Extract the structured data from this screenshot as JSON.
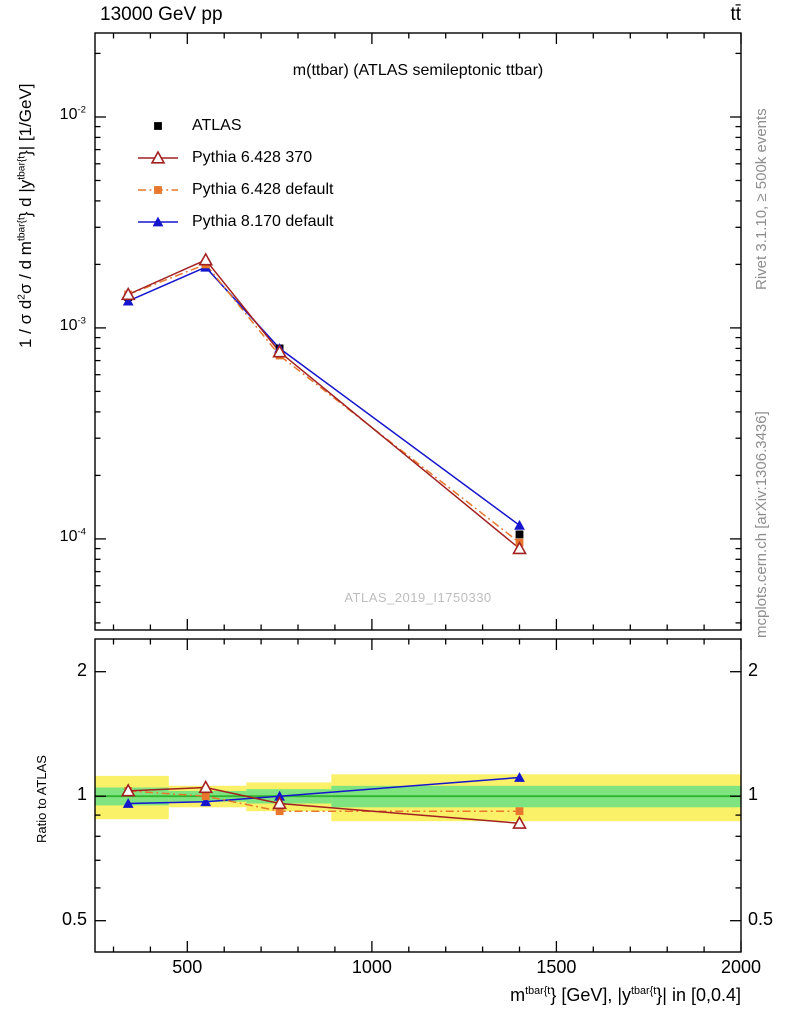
{
  "header": {
    "left": "13000 GeV pp",
    "right": "tt̄"
  },
  "plot": {
    "title": "m(ttbar) (ATLAS semileptonic ttbar)",
    "watermark": "ATLAS_2019_I1750330"
  },
  "side": {
    "rivet": "Rivet 3.1.10, ≥ 500k events",
    "mcplots": "mcplots.cern.ch [arXiv:1306.3436]"
  },
  "axes": {
    "ratio_ylabel": "Ratio to ATLAS",
    "main_ylabel_segments": [
      {
        "t": "1 / σ d"
      },
      {
        "t": "2",
        "sup": true
      },
      {
        "t": "σ / d m"
      },
      {
        "t": "tbar{t",
        "sup": true
      },
      {
        "t": "} d |y"
      },
      {
        "t": "tbar{t",
        "sup": true
      },
      {
        "t": "}| [1/GeV]"
      }
    ],
    "xlabel_segments": [
      {
        "t": "m"
      },
      {
        "t": "tbar{t",
        "sup": true
      },
      {
        "t": "} [GeV], |y"
      },
      {
        "t": "tbar{t",
        "sup": true
      },
      {
        "t": "}| in [0,0.4]"
      }
    ]
  },
  "chart_data": {
    "type": "line",
    "title": "m(ttbar) (ATLAS semileptonic ttbar)",
    "x_axis": {
      "label": "m^tbar{t} [GeV], |y^tbar{t}| in [0,0.4]",
      "scale": "linear",
      "min": 250,
      "max": 2000,
      "ticks": [
        500,
        1000,
        1500,
        2000
      ],
      "minor_step": 100
    },
    "main_y_axis": {
      "label": "1/σ d²σ/dm^tbar{t} d|y^tbar{t}| [1/GeV]",
      "scale": "log",
      "min": 3.7e-05,
      "max": 0.025,
      "ticks": [
        {
          "v": 0.01,
          "exp": "-2"
        },
        {
          "v": 0.001,
          "exp": "-3"
        },
        {
          "v": 0.0001,
          "exp": "-4"
        }
      ]
    },
    "ratio_y_axis": {
      "label": "Ratio to ATLAS",
      "scale": "log",
      "min": 0.42,
      "max": 2.4,
      "ticks": [
        {
          "v": 0.5,
          "label": "0.5"
        },
        {
          "v": 1,
          "label": "1"
        },
        {
          "v": 2,
          "label": "2"
        }
      ],
      "minor_ticks": [
        0.6,
        0.7,
        0.8,
        0.9
      ]
    },
    "x": [
      340,
      550,
      750,
      1400
    ],
    "series": [
      {
        "name": "ATLAS",
        "color": "#000000",
        "marker": "square-filled",
        "line": "none",
        "values": [
          0.0014,
          0.002,
          0.0008,
          0.000105
        ],
        "ratio": [
          1,
          1,
          1,
          1
        ]
      },
      {
        "name": "Pythia 6.428 370",
        "color": "#A22121",
        "marker": "triangle-open",
        "line": "solid",
        "values": [
          0.00144,
          0.0021,
          0.00077,
          9e-05
        ],
        "ratio": [
          1.03,
          1.05,
          0.96,
          0.86
        ]
      },
      {
        "name": "Pythia 6.428 default",
        "color": "#E8762C",
        "marker": "square-filled",
        "line": "dashdot",
        "values": [
          0.00144,
          0.002,
          0.00074,
          9.6e-05
        ],
        "ratio": [
          1.03,
          1.0,
          0.92,
          0.92
        ]
      },
      {
        "name": "Pythia 8.170 default",
        "color": "#1515CE",
        "marker": "triangle-filled",
        "line": "solid",
        "values": [
          0.00134,
          0.00194,
          0.0008,
          0.000116
        ],
        "ratio": [
          0.96,
          0.97,
          1.0,
          1.11
        ]
      }
    ],
    "bands": {
      "yellow_color": "#FAF168",
      "green_color": "#7FE47F",
      "line_color": "#2FB52F",
      "segments": [
        {
          "x0": 250,
          "x1": 450,
          "yellow": [
            0.88,
            1.12
          ],
          "green": [
            0.95,
            1.05
          ]
        },
        {
          "x0": 450,
          "x1": 660,
          "yellow": [
            0.94,
            1.06
          ],
          "green": [
            0.97,
            1.03
          ]
        },
        {
          "x0": 660,
          "x1": 890,
          "yellow": [
            0.92,
            1.08
          ],
          "green": [
            0.96,
            1.04
          ]
        },
        {
          "x0": 890,
          "x1": 2000,
          "yellow": [
            0.87,
            1.13
          ],
          "green": [
            0.94,
            1.06
          ]
        }
      ]
    }
  }
}
